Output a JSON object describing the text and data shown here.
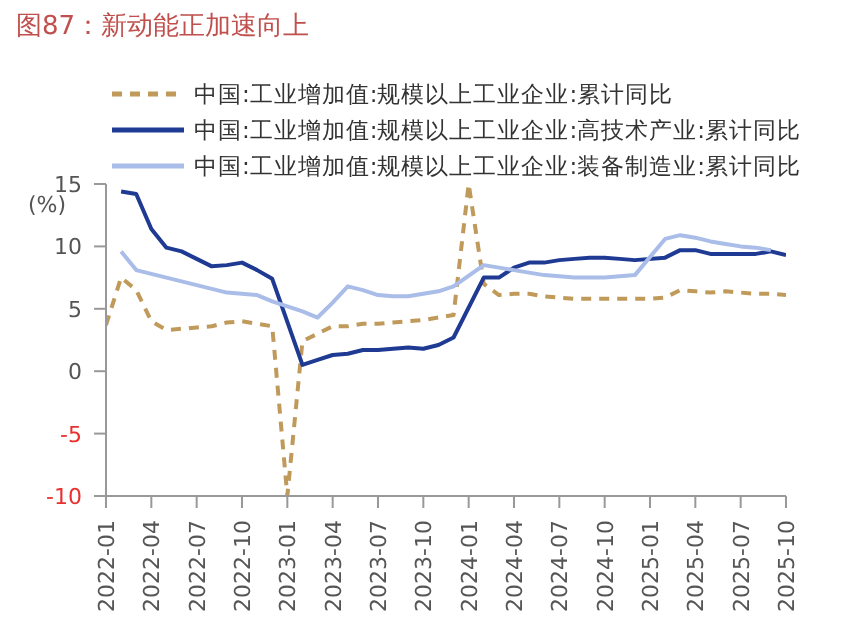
{
  "chart_data": {
    "type": "line",
    "title": "图87：新动能正加速向上",
    "ylabel": "(%)",
    "legend": "top",
    "grid": false,
    "x": [
      "2022-01",
      "2022-02",
      "2022-03",
      "2022-04",
      "2022-05",
      "2022-06",
      "2022-07",
      "2022-08",
      "2022-09",
      "2022-10",
      "2022-11",
      "2022-12",
      "2023-01",
      "2023-02",
      "2023-03",
      "2023-04",
      "2023-05",
      "2023-06",
      "2023-07",
      "2023-08",
      "2023-09",
      "2023-10",
      "2023-11",
      "2023-12",
      "2024-01",
      "2024-02",
      "2024-03",
      "2024-04",
      "2024-05",
      "2024-06",
      "2024-07",
      "2024-08",
      "2024-09",
      "2024-10",
      "2024-11",
      "2024-12",
      "2025-01",
      "2025-02",
      "2025-03",
      "2025-04",
      "2025-05",
      "2025-06",
      "2025-07",
      "2025-08",
      "2025-09",
      "2025-10"
    ],
    "xlim": [
      "2022-01",
      "2025-10"
    ],
    "xticks": [
      "2022-01",
      "2022-04",
      "2022-07",
      "2022-10",
      "2023-01",
      "2023-04",
      "2023-07",
      "2023-10",
      "2024-01",
      "2024-04",
      "2024-07",
      "2024-10",
      "2025-01",
      "2025-04",
      "2025-07",
      "2025-10"
    ],
    "ylim": [
      -10,
      15
    ],
    "yticks": [
      -10,
      -5,
      0,
      5,
      10,
      15
    ],
    "series": [
      {
        "name": "中国:工业增加值:规模以上工业企业:累计同比",
        "color": "#c09a5b",
        "line_style": "dashed",
        "values": [
          3.7,
          7.5,
          6.5,
          4.0,
          3.3,
          3.4,
          3.5,
          3.6,
          3.9,
          4.0,
          3.8,
          3.6,
          -10,
          2.4,
          3.0,
          3.6,
          3.6,
          3.8,
          3.8,
          3.9,
          4.0,
          4.1,
          4.3,
          4.5,
          15,
          7.0,
          6.1,
          6.2,
          6.2,
          6.0,
          5.9,
          5.8,
          5.8,
          5.8,
          5.8,
          5.8,
          5.8,
          5.9,
          6.5,
          6.4,
          6.3,
          6.4,
          6.3,
          6.2,
          6.2,
          6.1
        ]
      },
      {
        "name": "中国:工业增加值:规模以上工业企业:高技术产业:累计同比",
        "color": "#1f3a93",
        "line_style": "solid",
        "values": [
          null,
          14.4,
          14.2,
          11.4,
          9.9,
          9.6,
          9.0,
          8.4,
          8.5,
          8.7,
          8.1,
          7.4,
          null,
          0.5,
          0.9,
          1.3,
          1.4,
          1.7,
          1.7,
          1.8,
          1.9,
          1.8,
          2.1,
          2.7,
          null,
          7.5,
          7.5,
          8.3,
          8.7,
          8.7,
          8.9,
          9.0,
          9.1,
          9.1,
          9.0,
          8.9,
          null,
          9.1,
          9.7,
          9.7,
          9.4,
          9.4,
          9.4,
          9.4,
          9.6,
          9.3
        ]
      },
      {
        "name": "中国:工业增加值:规模以上工业企业:装备制造业:累计同比",
        "color": "#a9bde8",
        "line_style": "solid",
        "values": [
          null,
          9.6,
          8.1,
          7.8,
          7.5,
          7.2,
          6.9,
          6.6,
          6.3,
          6.2,
          6.1,
          5.6,
          null,
          4.8,
          4.3,
          5.5,
          6.8,
          6.5,
          6.1,
          6.0,
          6.0,
          6.2,
          6.4,
          6.8,
          null,
          8.5,
          8.3,
          8.1,
          7.9,
          7.7,
          7.6,
          7.5,
          7.5,
          7.5,
          7.6,
          7.7,
          null,
          10.6,
          10.9,
          10.7,
          10.4,
          10.2,
          10.0,
          9.9,
          9.7,
          null
        ]
      }
    ]
  }
}
